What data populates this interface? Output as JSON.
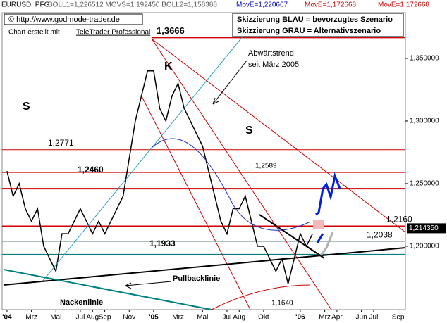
{
  "header": {
    "symbol": "EURUSD_PFG",
    "indicators": "BOLL1=1,226512 MOVS=1,192450 BOLL2=1,158388",
    "move1": "MovE=1,220667",
    "move2": "MovE=1,172668",
    "move3": "MovE=1,172668"
  },
  "chart_data": {
    "type": "line",
    "credit": "© http://www.godmode-trader.de",
    "software_note": "Chart erstellt mit",
    "software": "TeleTrader Professional",
    "legend_lines": [
      "Skizzierung BLAU = bevorzugtes Szenario",
      "Skizzierung GRAU = Alternativszenario"
    ],
    "annotations": {
      "k": "K",
      "s1": "S",
      "s2": "S",
      "trend_1": "Abwärtstrend",
      "trend_2": "seit März 2005",
      "pullback": "Pullbacklinie",
      "neckline": "Nackenlinie"
    },
    "x": [
      0,
      0.5,
      1,
      1.5,
      2,
      2.5,
      3,
      3.5,
      4,
      4.5,
      5,
      5.5,
      6,
      6.5,
      7,
      7.5,
      8,
      8.5,
      9,
      9.5,
      10,
      10.5,
      11,
      11.5,
      12,
      12.5,
      13,
      13.5,
      14,
      14.5,
      15,
      15.5,
      16,
      16.5,
      17,
      17.5,
      18,
      18.5,
      19,
      19.5,
      20,
      20.5,
      21,
      21.5,
      22,
      22.5,
      23,
      23.5,
      24,
      24.5,
      25
    ],
    "series": [
      {
        "color": "#000000",
        "values": [
          1.26,
          1.24,
          1.25,
          1.23,
          1.22,
          1.23,
          1.2,
          1.19,
          1.18,
          1.21,
          1.21,
          1.22,
          1.23,
          1.22,
          1.21,
          1.22,
          1.21,
          1.22,
          1.23,
          1.24,
          1.27,
          1.3,
          1.32,
          1.34,
          1.34,
          1.31,
          1.3,
          1.32,
          1.33,
          1.31,
          1.3,
          1.29,
          1.28,
          1.26,
          1.24,
          1.22,
          1.21,
          1.23,
          1.23,
          1.24,
          1.22,
          1.2,
          1.2,
          1.19,
          1.18,
          1.19,
          1.17,
          1.19,
          1.21,
          1.2,
          1.21
        ]
      }
    ],
    "levels": [
      {
        "value": 1.3666,
        "label": "1,3666",
        "color": "#d00000"
      },
      {
        "value": 1.2771,
        "label": "1,2771",
        "color": "#d00000"
      },
      {
        "value": 1.2589,
        "label": "1,2589",
        "color": "#d00000"
      },
      {
        "value": 1.246,
        "label": "1,2460",
        "color": "#d00000"
      },
      {
        "value": 1.216,
        "label": "1,2160",
        "color": "#d00000"
      },
      {
        "value": 1.2038,
        "label": "1,2038",
        "color": "#7a9a9a"
      },
      {
        "value": 1.1933,
        "label": "1,1933",
        "color": "#008080"
      },
      {
        "value": 1.164,
        "label": "1,1640"
      }
    ],
    "last_price": {
      "value": 1.21435,
      "label": "1,214350"
    },
    "xlim": [
      -0.4,
      32.6
    ],
    "xticks": [
      {
        "value": 0,
        "label": "'04"
      },
      {
        "value": 2,
        "label": "Mrz"
      },
      {
        "value": 4,
        "label": "Mai"
      },
      {
        "value": 6,
        "label": "Jul"
      },
      {
        "value": 7,
        "label": "Aug"
      },
      {
        "value": 8,
        "label": "Sep"
      },
      {
        "value": 10,
        "label": "Nov"
      },
      {
        "value": 12,
        "label": "'05"
      },
      {
        "value": 14,
        "label": "Mrz"
      },
      {
        "value": 16,
        "label": "Mai"
      },
      {
        "value": 18,
        "label": "Jul"
      },
      {
        "value": 19,
        "label": "Aug"
      },
      {
        "value": 21,
        "label": "Okt"
      },
      {
        "value": 24,
        "label": "'06"
      },
      {
        "value": 26,
        "label": "Mrz"
      },
      {
        "value": 27,
        "label": "Apr"
      },
      {
        "value": 29,
        "label": "Jun"
      },
      {
        "value": 30,
        "label": "Jul"
      },
      {
        "value": 32,
        "label": "Sep"
      }
    ],
    "ylim": [
      1.1494,
      1.3865
    ],
    "yticks": [
      {
        "value": 1.35,
        "label": "1,350000"
      },
      {
        "value": 1.3,
        "label": "1,300000"
      },
      {
        "value": 1.25,
        "label": "1,250000"
      },
      {
        "value": 1.2,
        "label": "1,200000"
      }
    ]
  }
}
